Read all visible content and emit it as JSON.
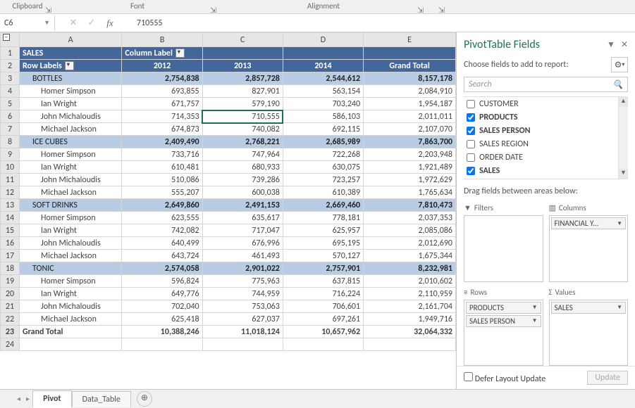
{
  "ribbon": {
    "groups": [
      "Clipboard",
      "Font",
      "Alignment",
      ""
    ],
    "launcher_glyph": "⇲"
  },
  "nameBox": {
    "value": "C6"
  },
  "formula": {
    "value": "710555",
    "cancel": "✕",
    "enter": "✓",
    "fx": "fx"
  },
  "pivot": {
    "title_row": {
      "a": "SALES",
      "b": "Column Label"
    },
    "header": {
      "rowLabels": "Row Labels",
      "c2012": "2012",
      "c2013": "2013",
      "c2014": "2014",
      "grand": "Grand Total"
    },
    "categories": [
      {
        "name": "BOTTLES",
        "v": [
          "2,754,838",
          "2,857,728",
          "2,544,612",
          "8,157,178"
        ],
        "rows": [
          {
            "p": "Homer Simpson",
            "v": [
              "693,855",
              "827,901",
              "563,154",
              "2,084,910"
            ]
          },
          {
            "p": "Ian Wright",
            "v": [
              "671,757",
              "579,190",
              "703,240",
              "1,954,187"
            ]
          },
          {
            "p": "John Michaloudis",
            "v": [
              "714,353",
              "710,555",
              "586,103",
              "2,011,011"
            ]
          },
          {
            "p": "Michael Jackson",
            "v": [
              "674,873",
              "740,082",
              "692,115",
              "2,107,070"
            ]
          }
        ]
      },
      {
        "name": "ICE CUBES",
        "v": [
          "2,409,490",
          "2,768,221",
          "2,685,989",
          "7,863,700"
        ],
        "rows": [
          {
            "p": "Homer Simpson",
            "v": [
              "733,716",
              "747,964",
              "722,268",
              "2,203,948"
            ]
          },
          {
            "p": "Ian Wright",
            "v": [
              "610,481",
              "680,933",
              "630,075",
              "1,921,489"
            ]
          },
          {
            "p": "John Michaloudis",
            "v": [
              "510,086",
              "739,286",
              "723,257",
              "1,972,629"
            ]
          },
          {
            "p": "Michael Jackson",
            "v": [
              "555,207",
              "600,038",
              "610,389",
              "1,765,634"
            ]
          }
        ]
      },
      {
        "name": "SOFT DRINKS",
        "v": [
          "2,649,860",
          "2,491,153",
          "2,669,460",
          "7,810,473"
        ],
        "rows": [
          {
            "p": "Homer Simpson",
            "v": [
              "623,555",
              "635,617",
              "778,181",
              "2,037,353"
            ]
          },
          {
            "p": "Ian Wright",
            "v": [
              "742,082",
              "717,047",
              "625,957",
              "2,085,086"
            ]
          },
          {
            "p": "John Michaloudis",
            "v": [
              "640,499",
              "676,996",
              "695,195",
              "2,012,690"
            ]
          },
          {
            "p": "Michael Jackson",
            "v": [
              "643,724",
              "461,493",
              "570,127",
              "1,675,344"
            ]
          }
        ]
      },
      {
        "name": "TONIC",
        "v": [
          "2,574,058",
          "2,901,022",
          "2,757,901",
          "8,232,981"
        ],
        "rows": [
          {
            "p": "Homer Simpson",
            "v": [
              "596,824",
              "775,963",
              "637,815",
              "2,010,602"
            ]
          },
          {
            "p": "Ian Wright",
            "v": [
              "649,776",
              "744,959",
              "716,224",
              "2,110,959"
            ]
          },
          {
            "p": "John Michaloudis",
            "v": [
              "702,040",
              "753,063",
              "706,601",
              "2,161,704"
            ]
          },
          {
            "p": "Michael Jackson",
            "v": [
              "625,418",
              "627,037",
              "697,261",
              "1,949,716"
            ]
          }
        ]
      }
    ],
    "grand": {
      "label": "Grand Total",
      "v": [
        "10,388,246",
        "11,018,124",
        "10,657,962",
        "32,064,332"
      ]
    }
  },
  "selected": {
    "row": 6,
    "col": "C"
  },
  "pane": {
    "title": "PivotTable Fields",
    "chooseLabel": "Choose fields to add to report:",
    "searchPlaceholder": "Search",
    "fields": [
      {
        "label": "CUSTOMER",
        "checked": false
      },
      {
        "label": "PRODUCTS",
        "checked": true
      },
      {
        "label": "SALES PERSON",
        "checked": true
      },
      {
        "label": "SALES REGION",
        "checked": false
      },
      {
        "label": "ORDER DATE",
        "checked": false
      },
      {
        "label": "SALES",
        "checked": true
      }
    ],
    "dragHint": "Drag fields between areas below:",
    "areas": {
      "filters": "Filters",
      "columns": "Columns",
      "rows": "Rows",
      "values": "Values",
      "columns_items": [
        "FINANCIAL Y..."
      ],
      "rows_items": [
        "PRODUCTS",
        "SALES PERSON"
      ],
      "values_items": [
        "SALES"
      ]
    },
    "deferLabel": "Defer Layout Update",
    "updateLabel": "Update"
  },
  "tabs": {
    "active": "Pivot",
    "other": "Data_Table"
  },
  "colors": {
    "hdr": "#44679b",
    "cat": "#b8cce4",
    "accent": "#217346",
    "selBorder": "#1f7246"
  }
}
